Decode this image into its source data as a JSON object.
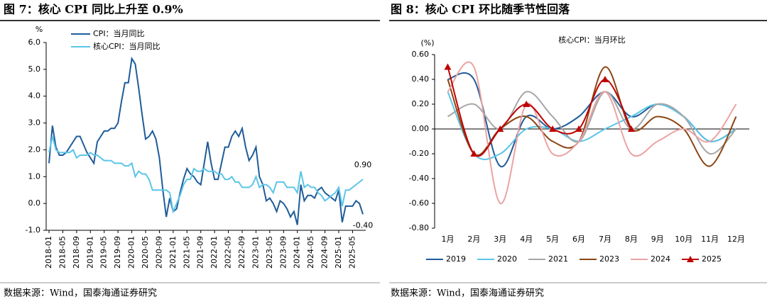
{
  "chart_data": [
    {
      "type": "line",
      "title": "图 7：核心 CPI 同比上升至 0.9%",
      "unit": "%",
      "source": "数据来源：Wind，国泰海通证券研究",
      "categories": [
        "2018-01",
        null,
        null,
        null,
        "2018-05",
        null,
        null,
        null,
        "2018-09",
        null,
        null,
        null,
        "2019-01",
        null,
        null,
        null,
        "2019-05",
        null,
        null,
        null,
        "2019-09",
        null,
        null,
        null,
        "2020-01",
        null,
        null,
        null,
        "2020-05",
        null,
        null,
        null,
        "2020-09",
        null,
        null,
        null,
        "2021-01",
        null,
        null,
        null,
        "2021-05",
        null,
        null,
        null,
        "2021-09",
        null,
        null,
        null,
        "2022-01",
        null,
        null,
        null,
        "2022-05",
        null,
        null,
        null,
        "2022-09",
        null,
        null,
        null,
        "2023-01",
        null,
        null,
        null,
        "2023-05",
        null,
        null,
        null,
        "2023-09",
        null,
        null,
        null,
        "2024-01",
        null,
        null,
        null,
        "2024-05",
        null,
        null,
        null,
        "2024-09",
        null,
        null,
        null,
        "2025-01",
        null,
        null,
        null,
        "2025-05",
        null,
        null,
        null
      ],
      "series": [
        {
          "name": "CPI：当月同比",
          "color": "#1f5c99",
          "values": [
            1.5,
            2.9,
            2.1,
            1.8,
            1.8,
            1.9,
            2.1,
            2.3,
            2.5,
            2.5,
            2.2,
            1.9,
            1.7,
            1.5,
            2.3,
            2.5,
            2.7,
            2.7,
            2.8,
            2.8,
            3.0,
            3.8,
            4.5,
            4.5,
            5.4,
            5.2,
            4.3,
            3.3,
            2.4,
            2.5,
            2.7,
            2.4,
            1.7,
            0.5,
            -0.5,
            0.2,
            -0.3,
            -0.2,
            0.4,
            0.9,
            1.3,
            1.1,
            1.0,
            0.8,
            0.7,
            1.5,
            2.3,
            1.5,
            0.9,
            0.9,
            1.5,
            2.1,
            2.1,
            2.5,
            2.7,
            2.5,
            2.8,
            2.1,
            1.6,
            1.8,
            2.1,
            1.0,
            0.7,
            0.1,
            0.2,
            0.0,
            -0.3,
            0.1,
            0.0,
            -0.2,
            -0.5,
            -0.3,
            -0.8,
            0.7,
            0.1,
            0.3,
            0.3,
            0.2,
            0.5,
            0.6,
            0.4,
            0.3,
            0.2,
            0.1,
            0.5,
            -0.7,
            -0.1,
            -0.1,
            -0.1,
            0.1,
            0.0,
            -0.4
          ]
        },
        {
          "name": "核心CPI：当月同比",
          "color": "#5bc5e8",
          "values": [
            1.9,
            2.5,
            2.0,
            1.9,
            1.9,
            1.9,
            1.9,
            2.0,
            1.7,
            1.8,
            1.8,
            1.8,
            1.9,
            1.8,
            1.8,
            1.7,
            1.6,
            1.6,
            1.6,
            1.5,
            1.5,
            1.5,
            1.4,
            1.4,
            1.5,
            1.0,
            1.2,
            1.1,
            1.1,
            0.9,
            0.5,
            0.5,
            0.5,
            0.5,
            0.5,
            0.4,
            -0.3,
            0.0,
            0.3,
            0.7,
            0.9,
            0.9,
            1.3,
            1.2,
            1.2,
            1.3,
            1.2,
            1.2,
            1.2,
            1.1,
            1.1,
            0.9,
            0.9,
            1.0,
            0.8,
            0.8,
            0.6,
            0.6,
            0.6,
            0.7,
            1.0,
            0.6,
            0.7,
            0.7,
            0.6,
            0.4,
            0.8,
            0.8,
            0.8,
            0.6,
            0.6,
            0.6,
            0.4,
            1.2,
            0.6,
            0.7,
            0.6,
            0.6,
            0.4,
            0.3,
            0.1,
            0.2,
            0.3,
            0.4,
            0.6,
            -0.1,
            0.5,
            0.5,
            0.6,
            0.7,
            0.8,
            0.9
          ]
        }
      ],
      "annotations": [
        "0.90",
        "-0.40"
      ],
      "ylim": [
        -1,
        6
      ],
      "yticks": [
        {
          "value": -1,
          "label": "-1.0"
        },
        {
          "value": 0,
          "label": "0.0"
        },
        {
          "value": 1,
          "label": "1.0"
        },
        {
          "value": 2,
          "label": "2.0"
        },
        {
          "value": 3,
          "label": "3.0"
        },
        {
          "value": 4,
          "label": "4.0"
        },
        {
          "value": 5,
          "label": "5.0"
        },
        {
          "value": 6,
          "label": "6.0"
        }
      ],
      "legend": "top-left",
      "grid": false,
      "smooth": false,
      "xaxis_position": "bottom"
    },
    {
      "type": "line",
      "title": "图 8：核心 CPI 环比随季节性回落",
      "subtitle": "核心CPI：当月环比",
      "unit": "(%)",
      "source": "数据来源：Wind，国泰海通证券研究",
      "categories": [
        "1月",
        "2月",
        "3月",
        "4月",
        "5月",
        "6月",
        "7月",
        "8月",
        "9月",
        "10月",
        "11月",
        "12月"
      ],
      "series": [
        {
          "name": "2019",
          "color": "#1f5c99",
          "values": [
            0.4,
            0.4,
            -0.3,
            0.1,
            0.0,
            0.1,
            0.3,
            0.1,
            0.2,
            0.1,
            -0.1,
            0.0
          ]
        },
        {
          "name": "2020",
          "color": "#5bc5e8",
          "values": [
            0.3,
            -0.2,
            -0.2,
            0.0,
            0.0,
            -0.1,
            0.0,
            0.1,
            0.2,
            0.1,
            -0.1,
            0.0
          ]
        },
        {
          "name": "2021",
          "color": "#a6a6a6",
          "values": [
            0.1,
            0.2,
            0.0,
            0.3,
            0.1,
            -0.1,
            0.3,
            0.0,
            0.2,
            0.1,
            -0.2,
            0.0
          ]
        },
        {
          "name": "2023",
          "color": "#8b4513",
          "values": [
            0.4,
            -0.2,
            0.0,
            0.1,
            -0.1,
            -0.1,
            0.5,
            0.0,
            0.1,
            0.0,
            -0.3,
            0.1
          ]
        },
        {
          "name": "2024",
          "color": "#eba3a3",
          "values": [
            0.3,
            0.5,
            -0.6,
            0.2,
            -0.2,
            -0.1,
            0.3,
            -0.2,
            -0.1,
            0.0,
            -0.1,
            0.2
          ]
        },
        {
          "name": "2025",
          "color": "#c00000",
          "marker": "triangle",
          "values": [
            0.5,
            -0.2,
            0.0,
            0.2,
            0.0,
            0.0,
            0.4,
            0.0,
            null,
            null,
            null,
            null
          ]
        }
      ],
      "ylim": [
        -0.8,
        0.6
      ],
      "yticks": [
        {
          "value": -0.8,
          "label": "-0.80"
        },
        {
          "value": -0.6,
          "label": "-0.60"
        },
        {
          "value": -0.4,
          "label": "-0.40"
        },
        {
          "value": -0.2,
          "label": "-0.20"
        },
        {
          "value": 0,
          "label": "0.00"
        },
        {
          "value": 0.2,
          "label": "0.20"
        },
        {
          "value": 0.4,
          "label": "0.40"
        },
        {
          "value": 0.6,
          "label": "0.60"
        }
      ],
      "legend": "bottom",
      "grid": false,
      "smooth": true,
      "xaxis_position": "zero"
    }
  ]
}
